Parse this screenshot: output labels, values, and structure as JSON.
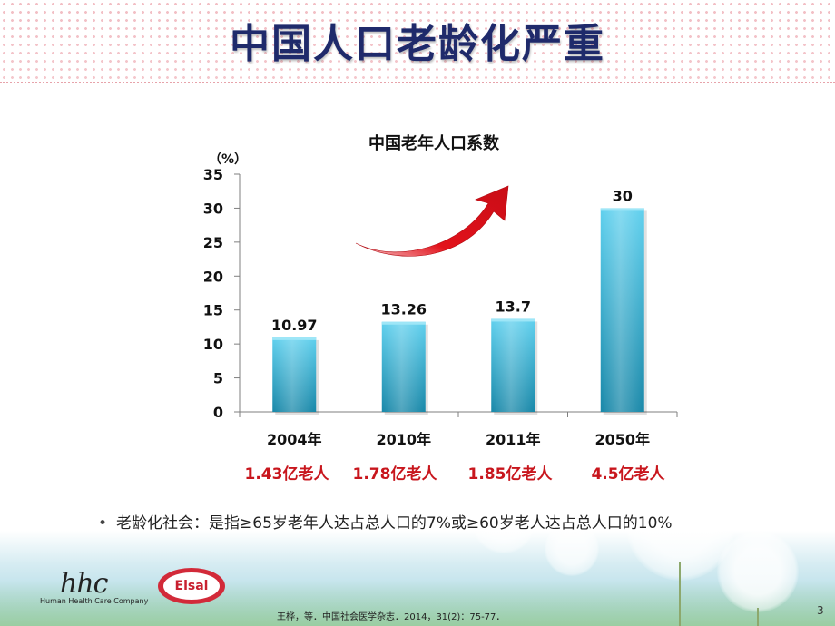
{
  "slide": {
    "title": "中国人口老龄化严重",
    "page_number": "3",
    "note": "老龄化社会：是指≥65岁老年人达占总人口的7%或≥60岁老人达占总人口的10%",
    "citation": "王桦，等．中国社会医学杂志．2014，31(2)：75-77．",
    "logo_hhc_mark": "hhc",
    "logo_hhc_text": "Human Health Care Company",
    "logo_eisai": "Eisai"
  },
  "chart_data": {
    "type": "bar",
    "title": "中国老年人口系数",
    "ylabel": "（%）",
    "xlabel": "",
    "categories": [
      "2004年",
      "2010年",
      "2011年",
      "2050年"
    ],
    "values": [
      10.97,
      13.26,
      13.7,
      30
    ],
    "value_labels": [
      "10.97",
      "13.26",
      "13.7",
      "30"
    ],
    "sublabels": [
      "1.43亿老人",
      "1.78亿老人",
      "1.85亿老人",
      "4.5亿老人"
    ],
    "ylim": [
      0,
      35
    ],
    "yticks": [
      0,
      5,
      10,
      15,
      20,
      25,
      30,
      35
    ],
    "grid": false,
    "legend": "none",
    "colors": {
      "bar_top": "#5fd0ee",
      "bar_bottom": "#1787a8",
      "arrow": "#e2121b",
      "sublabel": "#c8161d",
      "axis": "#7f7f7f"
    }
  }
}
